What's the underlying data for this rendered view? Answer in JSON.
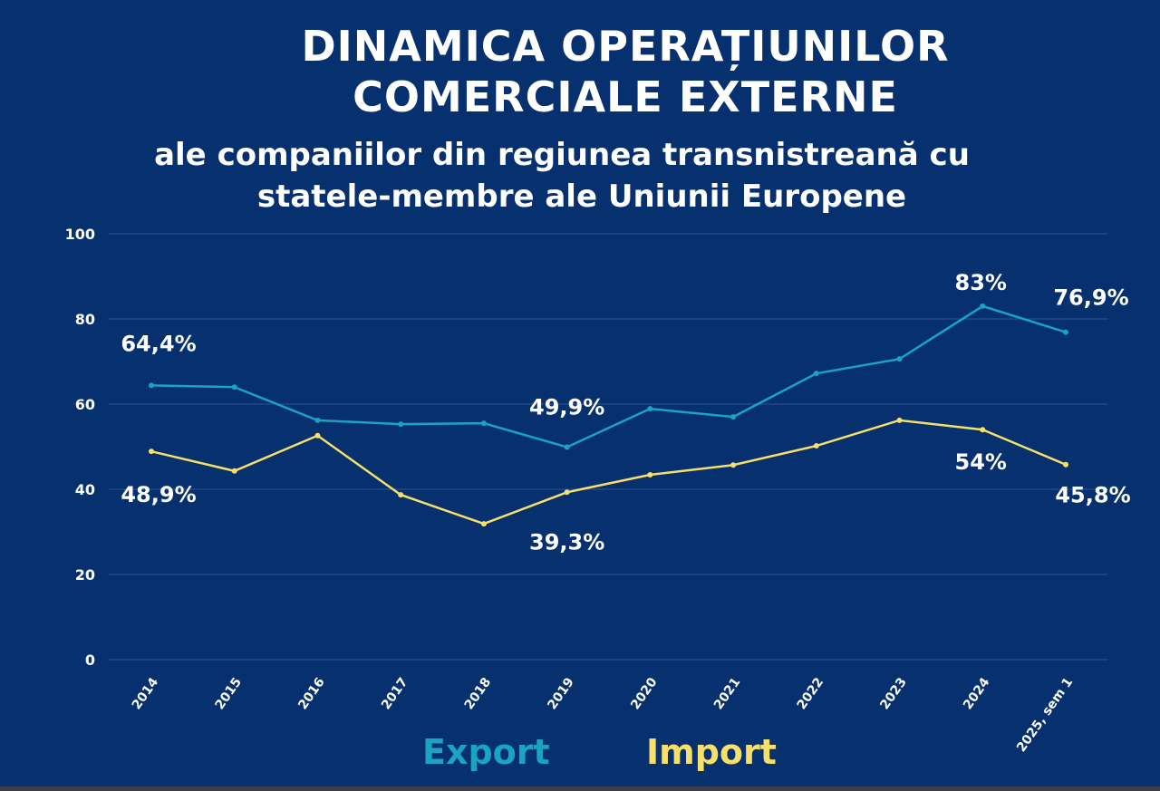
{
  "title": {
    "line1": "DINAMICA OPERAȚIUNILOR",
    "line2": "COMERCIALE EXTERNE",
    "sub1": "ale companiilor din regiunea transnistreană cu",
    "sub2": "statele-membre ale Uniunii Europene"
  },
  "chart_data": {
    "type": "line",
    "title": "DINAMICA OPERAȚIUNILOR COMERCIALE EXTERNE ale companiilor din regiunea transnistreană cu statele-membre ale Uniunii Europene",
    "categories": [
      "2014",
      "2015",
      "2016",
      "2017",
      "2018",
      "2019",
      "2020",
      "2021",
      "2022",
      "2023",
      "2024",
      "2025, sem 1"
    ],
    "ylim": [
      0,
      100
    ],
    "yticks": [
      "0",
      "20",
      "40",
      "60",
      "80",
      "100"
    ],
    "grid": true,
    "legend": "bottom-center",
    "series": [
      {
        "name": "Export",
        "color": "#1ba3c0",
        "values": [
          64.4,
          64.0,
          56.2,
          55.3,
          55.5,
          49.9,
          58.9,
          57.0,
          67.2,
          70.6,
          83,
          76.9
        ]
      },
      {
        "name": "Import",
        "color": "#f6df6a",
        "values": [
          48.9,
          44.3,
          52.6,
          38.7,
          31.9,
          39.3,
          43.4,
          45.7,
          50.2,
          56.2,
          54,
          45.8
        ]
      }
    ],
    "annotations": [
      {
        "series": 0,
        "index": 0,
        "text": "64,4%"
      },
      {
        "series": 1,
        "index": 0,
        "text": "48,9%"
      },
      {
        "series": 0,
        "index": 5,
        "text": "49,9%"
      },
      {
        "series": 1,
        "index": 5,
        "text": "39,3%"
      },
      {
        "series": 0,
        "index": 10,
        "text": "83%"
      },
      {
        "series": 0,
        "index": 11,
        "text": "76,9%"
      },
      {
        "series": 1,
        "index": 10,
        "text": "54%"
      },
      {
        "series": 1,
        "index": 11,
        "text": "45,8%"
      }
    ]
  }
}
